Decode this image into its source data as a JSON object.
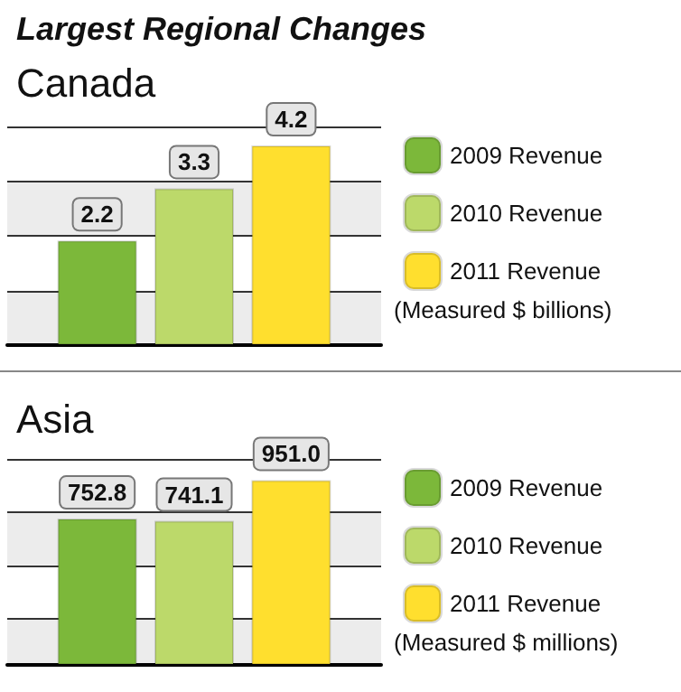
{
  "chart_data": [
    {
      "type": "bar",
      "title": "Largest Regional Changes",
      "subtitle": "Canada",
      "categories": [
        null
      ],
      "series": [
        {
          "name": "2009 Revenue",
          "color": "#7cb83a",
          "values": [
            2.2
          ]
        },
        {
          "name": "2010 Revenue",
          "color": "#bcd96a",
          "values": [
            3.3
          ]
        },
        {
          "name": "2011 Revenue",
          "color": "#ffdf2e",
          "values": [
            4.2
          ]
        }
      ],
      "ylim": [
        0,
        4.6
      ],
      "yticks": [
        {
          "value": 0,
          "label": null
        },
        {
          "value": 1.15,
          "label": null
        },
        {
          "value": 2.3,
          "label": null
        },
        {
          "value": 3.45,
          "label": null
        },
        {
          "value": 4.6,
          "label": null
        }
      ],
      "grid": "y",
      "tick_labels": false,
      "data_labels": true,
      "legend": "right",
      "annotations": [
        "(Measured $ billions)"
      ]
    },
    {
      "type": "bar",
      "title": "Asia",
      "categories": [
        null
      ],
      "series": [
        {
          "name": "2009 Revenue",
          "color": "#7cb83a",
          "values": [
            752.8
          ]
        },
        {
          "name": "2010 Revenue",
          "color": "#bcd96a",
          "values": [
            741.1
          ]
        },
        {
          "name": "2011 Revenue",
          "color": "#ffdf2e",
          "values": [
            951.0
          ],
          "value_labels": [
            "951.0"
          ]
        }
      ],
      "ylim": [
        0,
        1060
      ],
      "yticks": [
        {
          "value": 0,
          "label": null
        },
        {
          "value": 238,
          "label": null
        },
        {
          "value": 512,
          "label": null
        },
        {
          "value": 786,
          "label": null
        },
        {
          "value": 1060,
          "label": null
        }
      ],
      "grid": "y",
      "tick_labels": false,
      "data_labels": true,
      "legend": "right",
      "annotations": [
        "(Measured $ millions)"
      ]
    }
  ]
}
